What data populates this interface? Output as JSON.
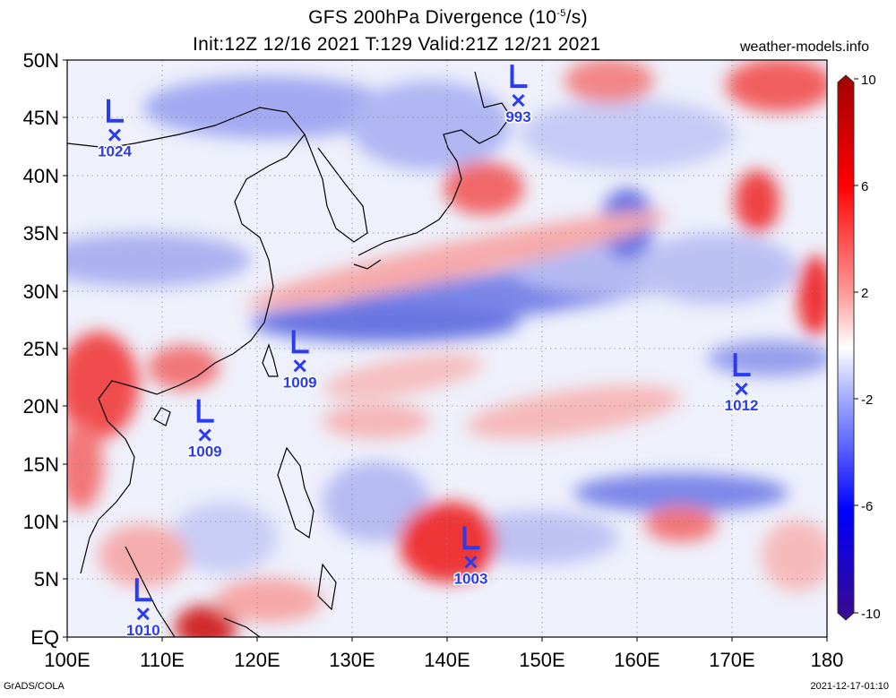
{
  "header": {
    "title_main": "GFS 200hPa Divergence (10",
    "title_exp": "-5",
    "title_unit": "/s)",
    "title_init": "Init:12Z 12/16 2021 T:129 Valid:21Z 12/21 2021",
    "site": "weather-models.info"
  },
  "footer": {
    "credit": "GrADS/COLA",
    "timestamp": "2021-12-17-01:10"
  },
  "map": {
    "lon_range": [
      100,
      180
    ],
    "lat_range": [
      0,
      50
    ],
    "lat_labels": [
      "50N",
      "45N",
      "40N",
      "35N",
      "30N",
      "25N",
      "20N",
      "15N",
      "10N",
      "5N",
      "EQ"
    ],
    "lon_labels": [
      "100E",
      "110E",
      "120E",
      "130E",
      "140E",
      "150E",
      "160E",
      "170E",
      "180"
    ],
    "colorbar": {
      "labels": [
        "10",
        "6",
        "2",
        "-2",
        "-6",
        "-10"
      ],
      "colors": [
        "#3a0a8a",
        "#0000ff",
        "#7a8cff",
        "#ffffff",
        "#ff8a8a",
        "#ff0000",
        "#a00000"
      ]
    },
    "lows": [
      {
        "lon": 105,
        "lat": 43.5,
        "pressure": "1024"
      },
      {
        "lon": 147.5,
        "lat": 46.5,
        "pressure": "993"
      },
      {
        "lon": 124.5,
        "lat": 23.5,
        "pressure": "1009"
      },
      {
        "lon": 114.5,
        "lat": 17.5,
        "pressure": "1009"
      },
      {
        "lon": 171,
        "lat": 21.5,
        "pressure": "1012"
      },
      {
        "lon": 142.5,
        "lat": 6.5,
        "pressure": "1003"
      },
      {
        "lon": 108,
        "lat": 2,
        "pressure": "1010"
      }
    ]
  }
}
